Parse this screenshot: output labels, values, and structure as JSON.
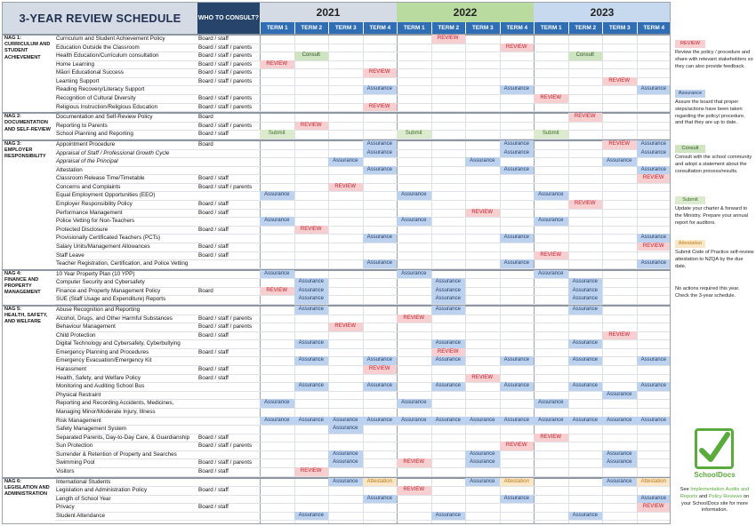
{
  "title": "3-YEAR REVIEW SCHEDULE",
  "who_header": "WHO TO CONSULT?",
  "years": [
    "2021",
    "2022",
    "2023"
  ],
  "terms": [
    "TERM 1",
    "TERM 2",
    "TERM 3",
    "TERM 4",
    "TERM 1",
    "TERM 2",
    "TERM 3",
    "TERM 4",
    "TERM 1",
    "TERM 2",
    "TERM 3",
    "TERM 4"
  ],
  "tags": {
    "R": "REVIEW",
    "A": "Assurance",
    "C": "Consult",
    "S": "Submit",
    "T": "Attestation"
  },
  "colors": {
    "review": "#f7cfd1",
    "assurance": "#bdd2ef",
    "consult": "#cfe4c0",
    "submit": "#dcebcd",
    "attestation": "#fbe7c6",
    "term_header": "#2f6eb5",
    "year_2021": "#d5dbe4",
    "year_2022": "#b9dba0",
    "year_2023": "#c7d9ef"
  },
  "sections": [
    {
      "label": "NAG 1:\nCURRICULUM AND\nSTUDENT\nACHIEVEMENT",
      "rows": [
        {
          "n": "Curriculum and Student Achievement Policy",
          "w": "Board / staff",
          "c": [
            [
              5,
              "R"
            ]
          ]
        },
        {
          "n": "Education Outside the Classroom",
          "w": "Board / staff / parents",
          "c": [
            [
              7,
              "R"
            ]
          ]
        },
        {
          "n": "Health Education/Curriculum consultation",
          "w": "Board / staff / parents",
          "c": [
            [
              1,
              "C"
            ],
            [
              9,
              "C"
            ]
          ]
        },
        {
          "n": "Home Learning",
          "w": "Board / staff / parents",
          "c": [
            [
              0,
              "R"
            ]
          ]
        },
        {
          "n": "Māori Educational Success",
          "w": "Board / staff / parents",
          "c": [
            [
              3,
              "R"
            ]
          ]
        },
        {
          "n": "Learning Support",
          "w": "Board / staff / parents",
          "c": [
            [
              10,
              "R"
            ]
          ]
        },
        {
          "n": "Reading Recovery/Literacy Support",
          "w": "",
          "c": [
            [
              3,
              "A"
            ],
            [
              7,
              "A"
            ],
            [
              11,
              "A"
            ]
          ]
        },
        {
          "n": "Recognition of Cultural Diversity",
          "w": "Board / staff / parents",
          "c": [
            [
              8,
              "R"
            ]
          ]
        },
        {
          "n": "Religious Instruction/Religious Education",
          "w": "Board / staff / parents",
          "c": [
            [
              3,
              "R"
            ]
          ]
        }
      ]
    },
    {
      "label": "NAG 2:\nDOCUMENTATION\nAND SELF-REVIEW",
      "rows": [
        {
          "n": "Documentation and Self-Review Policy",
          "w": "Board",
          "c": [
            [
              9,
              "R"
            ]
          ]
        },
        {
          "n": "Reporting to Parents",
          "w": "Board / staff / parents",
          "c": [
            [
              1,
              "R"
            ]
          ]
        },
        {
          "n": "School Planning and Reporting",
          "w": "Board / staff",
          "c": [
            [
              0,
              "S"
            ],
            [
              4,
              "S"
            ],
            [
              8,
              "S"
            ]
          ]
        }
      ]
    },
    {
      "label": "NAG 3:\nEMPLOYER\nRESPONSIBILITY",
      "rows": [
        {
          "n": "Appointment Procedure",
          "w": "Board",
          "c": [
            [
              3,
              "A"
            ],
            [
              7,
              "A"
            ],
            [
              10,
              "R"
            ],
            [
              11,
              "A"
            ]
          ]
        },
        {
          "n": "Appraisal of Staff / Professional Growth Cycle",
          "i": true,
          "w": "",
          "c": [
            [
              3,
              "A"
            ],
            [
              7,
              "A"
            ],
            [
              11,
              "A"
            ]
          ]
        },
        {
          "n": "Appraisal of the Principal",
          "i": true,
          "w": "",
          "c": [
            [
              2,
              "A"
            ],
            [
              6,
              "A"
            ],
            [
              10,
              "A"
            ]
          ]
        },
        {
          "n": "Attestation",
          "w": "",
          "c": [
            [
              3,
              "A"
            ],
            [
              7,
              "A"
            ],
            [
              11,
              "A"
            ]
          ]
        },
        {
          "n": "Classroom Release Time/Timetable",
          "w": "Board / staff",
          "c": [
            [
              11,
              "R"
            ]
          ]
        },
        {
          "n": "Concerns and Complaints",
          "w": "Board / staff / parents",
          "c": [
            [
              2,
              "R"
            ]
          ]
        },
        {
          "n": "Equal Employment Opportunities (EEO)",
          "w": "",
          "c": [
            [
              0,
              "A"
            ],
            [
              4,
              "A"
            ],
            [
              8,
              "A"
            ]
          ]
        },
        {
          "n": "Employer Responsibility Policy",
          "w": "Board / staff",
          "c": [
            [
              9,
              "R"
            ]
          ]
        },
        {
          "n": "Performance Management",
          "w": "Board / staff",
          "c": [
            [
              6,
              "R"
            ]
          ]
        },
        {
          "n": "Police Vetting for Non-Teachers",
          "w": "",
          "c": [
            [
              0,
              "A"
            ],
            [
              4,
              "A"
            ],
            [
              8,
              "A"
            ]
          ]
        },
        {
          "n": "Protected Disclosure",
          "w": "Board / staff",
          "c": [
            [
              1,
              "R"
            ]
          ]
        },
        {
          "n": "Provisionally Certificated Teachers (PCTs)",
          "w": "",
          "c": [
            [
              3,
              "A"
            ],
            [
              7,
              "A"
            ],
            [
              11,
              "A"
            ]
          ]
        },
        {
          "n": "Salary Units/Management Allowances",
          "w": "Board / staff",
          "c": [
            [
              11,
              "R"
            ]
          ]
        },
        {
          "n": "Staff Leave",
          "w": "Board / staff",
          "c": [
            [
              8,
              "R"
            ]
          ]
        },
        {
          "n": "Teacher Registration, Certification, and Police Vetting",
          "w": "",
          "c": [
            [
              3,
              "A"
            ],
            [
              7,
              "A"
            ],
            [
              11,
              "A"
            ]
          ]
        }
      ]
    },
    {
      "label": "NAG 4:\nFINANCE AND\nPROPERTY\nMANAGEMENT",
      "rows": [
        {
          "n": "10 Year Property Plan (10 YPP)",
          "w": "",
          "c": [
            [
              0,
              "A"
            ],
            [
              4,
              "A"
            ],
            [
              8,
              "A"
            ]
          ]
        },
        {
          "n": "Computer Security and Cybersafety",
          "w": "",
          "c": [
            [
              1,
              "A"
            ],
            [
              5,
              "A"
            ],
            [
              9,
              "A"
            ]
          ]
        },
        {
          "n": "Finance and Property Management Policy",
          "w": "Board",
          "c": [
            [
              0,
              "R"
            ],
            [
              1,
              "A"
            ],
            [
              5,
              "A"
            ],
            [
              9,
              "A"
            ]
          ]
        },
        {
          "n": "SUE (Staff Usage and Expenditure) Reports",
          "w": "",
          "c": [
            [
              1,
              "A"
            ],
            [
              5,
              "A"
            ],
            [
              9,
              "A"
            ]
          ]
        }
      ]
    },
    {
      "label": "NAG 5:\nHEALTH, SAFETY,\nAND WELFARE",
      "rows": [
        {
          "n": "Abuse Recognition and Reporting",
          "w": "",
          "c": [
            [
              1,
              "A"
            ],
            [
              5,
              "A"
            ],
            [
              9,
              "A"
            ]
          ]
        },
        {
          "n": "Alcohol, Drugs, and Other Harmful Substances",
          "w": "Board / staff / parents",
          "c": [
            [
              4,
              "R"
            ]
          ]
        },
        {
          "n": "Behaviour  Management",
          "w": "Board / staff / parents",
          "c": [
            [
              2,
              "R"
            ]
          ]
        },
        {
          "n": "Child Protection",
          "w": "Board / staff",
          "c": [
            [
              10,
              "R"
            ]
          ]
        },
        {
          "n": "Digital Technology and Cybersafety, Cyberbullying",
          "w": "",
          "c": [
            [
              1,
              "A"
            ],
            [
              5,
              "A"
            ],
            [
              9,
              "A"
            ]
          ]
        },
        {
          "n": "Emergency Planning and Procedures",
          "w": "Board / staff",
          "c": [
            [
              5,
              "R"
            ]
          ]
        },
        {
          "n": "Emergency Evacuation/Emergency Kit",
          "w": "",
          "c": [
            [
              1,
              "A"
            ],
            [
              3,
              "A"
            ],
            [
              5,
              "A"
            ],
            [
              7,
              "A"
            ],
            [
              9,
              "A"
            ],
            [
              11,
              "A"
            ]
          ]
        },
        {
          "n": "Harassment",
          "w": "Board / staff",
          "c": [
            [
              3,
              "R"
            ]
          ]
        },
        {
          "n": "Health, Safety, and Welfare Policy",
          "w": "Board / staff",
          "c": [
            [
              6,
              "R"
            ]
          ]
        },
        {
          "n": "Monitoring and Auditing School Bus",
          "w": "",
          "c": [
            [
              1,
              "A"
            ],
            [
              3,
              "A"
            ],
            [
              5,
              "A"
            ],
            [
              7,
              "A"
            ],
            [
              9,
              "A"
            ],
            [
              11,
              "A"
            ]
          ]
        },
        {
          "n": "Physical Restraint",
          "w": "",
          "c": [
            [
              10,
              "A"
            ]
          ]
        },
        {
          "n": "Reporting and Recording Accidents, Medicines,",
          "w": "",
          "c": [
            [
              0,
              "A"
            ],
            [
              4,
              "A"
            ],
            [
              8,
              "A"
            ]
          ]
        },
        {
          "n": "   Managing Minor/Moderate Injury, Illness",
          "w": "",
          "c": []
        },
        {
          "n": "Risk Management",
          "w": "",
          "c": [
            [
              0,
              "A"
            ],
            [
              1,
              "A"
            ],
            [
              2,
              "A"
            ],
            [
              3,
              "A"
            ],
            [
              4,
              "A"
            ],
            [
              5,
              "A"
            ],
            [
              6,
              "A"
            ],
            [
              7,
              "A"
            ],
            [
              8,
              "A"
            ],
            [
              9,
              "A"
            ],
            [
              10,
              "A"
            ],
            [
              11,
              "A"
            ]
          ]
        },
        {
          "n": "Safety Management System",
          "w": "",
          "c": [
            [
              2,
              "A"
            ]
          ]
        },
        {
          "n": "Separated Parents, Day-to-Day Care, & Guardianship",
          "w": "Board / staff",
          "c": [
            [
              8,
              "R"
            ]
          ]
        },
        {
          "n": "Sun Protection",
          "w": "Board / staff / parents",
          "c": [
            [
              7,
              "R"
            ]
          ]
        },
        {
          "n": "Surrender & Retention of Property and Searches",
          "w": "",
          "c": [
            [
              2,
              "A"
            ],
            [
              6,
              "A"
            ],
            [
              10,
              "A"
            ]
          ]
        },
        {
          "n": "Swimming Pool",
          "w": "Board / staff / parents",
          "c": [
            [
              2,
              "A"
            ],
            [
              4,
              "R"
            ],
            [
              6,
              "A"
            ],
            [
              10,
              "A"
            ]
          ]
        },
        {
          "n": "Visitors",
          "w": "Board / staff",
          "c": [
            [
              1,
              "R"
            ]
          ]
        }
      ]
    },
    {
      "label": "NAG 6:\nLEGISLATION AND\nADMINISTRATION",
      "rows": [
        {
          "n": "International Students",
          "w": "",
          "c": [
            [
              2,
              "A"
            ],
            [
              3,
              "T"
            ],
            [
              6,
              "A"
            ],
            [
              7,
              "T"
            ],
            [
              10,
              "A"
            ],
            [
              11,
              "T"
            ]
          ]
        },
        {
          "n": "Legislation and Administration Policy",
          "w": "Board / staff",
          "c": [
            [
              4,
              "R"
            ]
          ]
        },
        {
          "n": "Length of School Year",
          "w": "",
          "c": [
            [
              3,
              "A"
            ],
            [
              7,
              "A"
            ],
            [
              11,
              "A"
            ]
          ]
        },
        {
          "n": "Privacy",
          "w": "Board / staff",
          "c": [
            [
              11,
              "R"
            ]
          ]
        },
        {
          "n": "Student Attendance",
          "w": "",
          "c": [
            [
              1,
              "A"
            ],
            [
              5,
              "A"
            ],
            [
              9,
              "A"
            ]
          ]
        }
      ]
    }
  ],
  "legend": [
    {
      "tag": "REVIEW",
      "k": "R",
      "text": "Review the policy / procedure and share with relevant stakeholders so they can also provide feedback."
    },
    {
      "tag": "Assurance",
      "k": "A",
      "text": "Assure the board that proper steps/actions have been taken regarding the policy/ procedure, and that they are up to date."
    },
    {
      "tag": "Consult",
      "k": "C",
      "text": "Consult with the school community and adopt a statement about  the consultation process/results."
    },
    {
      "tag": "Submit",
      "k": "S",
      "text": "Update your charter & forward to the Ministry. Prepare your annual report for auditors."
    },
    {
      "tag": "Attestation",
      "k": "T",
      "text": "Submit Code of Practice self-review attestation to NZQA by the due date."
    },
    {
      "tag": "",
      "k": "",
      "text": "No actions required this year. Check the 3-year schedule."
    }
  ],
  "logo_text": "SchoolDocs",
  "footer": {
    "pre": "See ",
    "link1": "Implementation Audits and Reports",
    "mid": " and ",
    "link2": "Policy Reviews",
    "post": " on your SchoolDocs site for more information."
  }
}
